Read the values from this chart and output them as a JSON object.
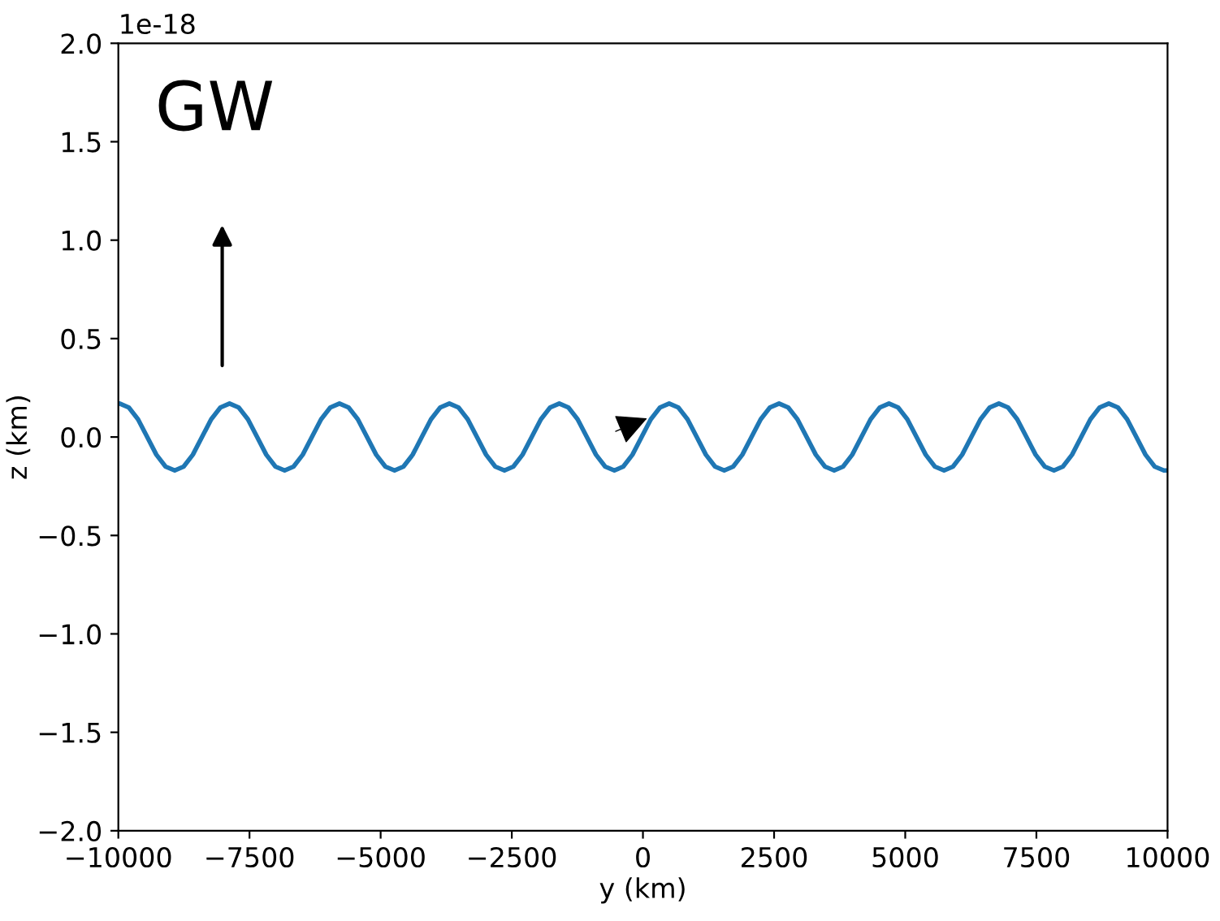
{
  "chart_data": {
    "type": "line",
    "xlabel": "y (km)",
    "ylabel": "z (km)",
    "annotations": [
      "GW",
      "1e-18"
    ],
    "xlim": [
      -10000,
      10000
    ],
    "xticks": [
      {
        "value": -10000,
        "label": "−10000"
      },
      {
        "value": -7500,
        "label": "−7500"
      },
      {
        "value": -5000,
        "label": "−5000"
      },
      {
        "value": -2500,
        "label": "−2500"
      },
      0,
      2500,
      5000,
      7500,
      10000
    ],
    "ylim": [
      -2,
      2
    ],
    "yticks": [
      {
        "value": -2,
        "label": "−2.0"
      },
      {
        "value": -1.5,
        "label": "−1.5"
      },
      {
        "value": -1,
        "label": "−1.0"
      },
      {
        "value": -0.5,
        "label": "−0.5"
      },
      {
        "value": 0,
        "label": "0.0"
      },
      0.5,
      {
        "value": 1,
        "label": "1.0"
      },
      1.5,
      {
        "value": 2,
        "label": "2.0"
      }
    ],
    "grid": false,
    "legend": false,
    "series": [
      {
        "color": "#1f77b4",
        "x": [
          -10000,
          -9975,
          -9800,
          -9625,
          -9450,
          -9275,
          -9100,
          -8925,
          -8755,
          -8580,
          -8405,
          -8230,
          -8055,
          -7880,
          -7705,
          -7530,
          -7355,
          -7180,
          -7005,
          -6830,
          -6660,
          -6485,
          -6310,
          -6135,
          -5960,
          -5785,
          -5610,
          -5435,
          -5260,
          -5085,
          -4910,
          -4735,
          -4565,
          -4390,
          -4215,
          -4040,
          -3865,
          -3690,
          -3515,
          -3340,
          -3165,
          -2990,
          -2815,
          -2640,
          -2470,
          -2295,
          -2120,
          -1945,
          -1770,
          -1595,
          -1420,
          -1245,
          -1070,
          -895,
          -720,
          -545,
          -375,
          -200,
          -25,
          150,
          325,
          500,
          675,
          850,
          1025,
          1200,
          1375,
          1550,
          1720,
          1895,
          2070,
          2245,
          2420,
          2595,
          2770,
          2945,
          3120,
          3295,
          3470,
          3645,
          3815,
          3990,
          4165,
          4340,
          4515,
          4690,
          4865,
          5040,
          5215,
          5390,
          5565,
          5740,
          5910,
          6085,
          6260,
          6435,
          6610,
          6785,
          6960,
          7135,
          7310,
          7485,
          7660,
          7835,
          8005,
          8180,
          8355,
          8530,
          8705,
          8880,
          9055,
          9230,
          9405,
          9580,
          9755,
          9930,
          10000
        ],
        "values": [
          0.17,
          0.17,
          0.15,
          0.09,
          0,
          -0.09,
          -0.15,
          -0.17,
          -0.15,
          -0.09,
          0,
          0.09,
          0.15,
          0.17,
          0.15,
          0.09,
          0,
          -0.09,
          -0.15,
          -0.17,
          -0.15,
          -0.09,
          0,
          0.09,
          0.15,
          0.17,
          0.15,
          0.09,
          0,
          -0.09,
          -0.15,
          -0.17,
          -0.15,
          -0.09,
          0,
          0.09,
          0.15,
          0.17,
          0.15,
          0.09,
          0,
          -0.09,
          -0.15,
          -0.17,
          -0.15,
          -0.09,
          0,
          0.09,
          0.15,
          0.17,
          0.15,
          0.09,
          0,
          -0.09,
          -0.15,
          -0.17,
          -0.15,
          -0.09,
          0,
          0.09,
          0.15,
          0.17,
          0.15,
          0.09,
          0,
          -0.09,
          -0.15,
          -0.17,
          -0.15,
          -0.09,
          0,
          0.09,
          0.15,
          0.17,
          0.15,
          0.09,
          0,
          -0.09,
          -0.15,
          -0.17,
          -0.15,
          -0.09,
          0,
          0.09,
          0.15,
          0.17,
          0.15,
          0.09,
          0,
          -0.09,
          -0.15,
          -0.17,
          -0.15,
          -0.09,
          0,
          0.09,
          0.15,
          0.17,
          0.15,
          0.09,
          0,
          -0.09,
          -0.15,
          -0.17,
          -0.15,
          -0.09,
          0,
          0.09,
          0.15,
          0.17,
          0.15,
          0.09,
          0,
          -0.09,
          -0.15,
          -0.17,
          -0.17
        ]
      }
    ]
  }
}
